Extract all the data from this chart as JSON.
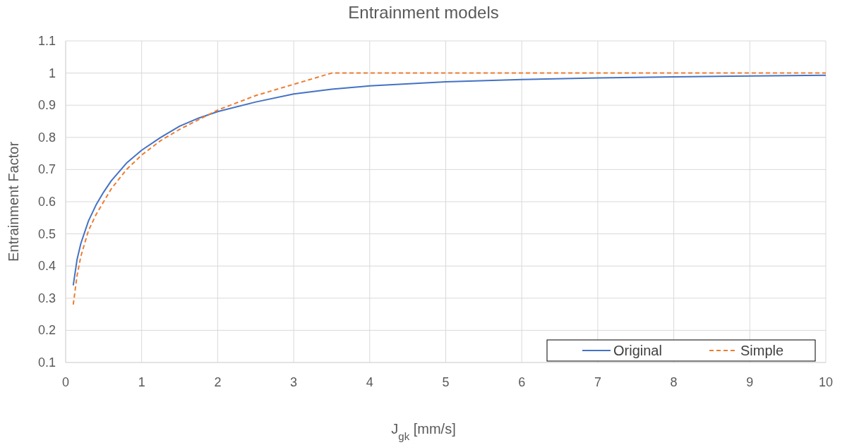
{
  "chart_data": {
    "type": "line",
    "title": "Entrainment models",
    "xlabel": "J$_{gk}$ [mm/s]",
    "ylabel": "Entrainment Factor",
    "xlim": [
      0,
      10
    ],
    "xticks": [
      0,
      1,
      2,
      3,
      4,
      5,
      6,
      7,
      8,
      9,
      10
    ],
    "ylim": [
      0.1,
      1.1
    ],
    "yticks": [
      0.1,
      0.2,
      0.3,
      0.4,
      0.5,
      0.6,
      0.7,
      0.8,
      0.9,
      1,
      1.1
    ],
    "grid": true,
    "legend": "bottom right",
    "series": [
      {
        "name": "Original",
        "color": "#4472c4",
        "line_style": "solid",
        "x": [
          0.1,
          0.15,
          0.2,
          0.3,
          0.4,
          0.5,
          0.6,
          0.8,
          1,
          1.25,
          1.5,
          1.75,
          2,
          2.5,
          3,
          3.5,
          4,
          5,
          6,
          7,
          8,
          9,
          10
        ],
        "values": [
          0.34,
          0.42,
          0.47,
          0.54,
          0.59,
          0.63,
          0.665,
          0.72,
          0.76,
          0.8,
          0.835,
          0.86,
          0.88,
          0.91,
          0.935,
          0.95,
          0.96,
          0.973,
          0.98,
          0.985,
          0.988,
          0.991,
          0.993
        ]
      },
      {
        "name": "Simple",
        "color": "#ed7d31",
        "line_style": "dashed",
        "x": [
          0.1,
          0.15,
          0.2,
          0.3,
          0.4,
          0.5,
          0.6,
          0.8,
          1,
          1.25,
          1.5,
          1.75,
          2,
          2.5,
          3,
          3.5,
          10
        ],
        "values": [
          0.28,
          0.37,
          0.43,
          0.51,
          0.56,
          0.6,
          0.64,
          0.7,
          0.745,
          0.79,
          0.825,
          0.855,
          0.885,
          0.93,
          0.965,
          1,
          1
        ]
      }
    ]
  }
}
